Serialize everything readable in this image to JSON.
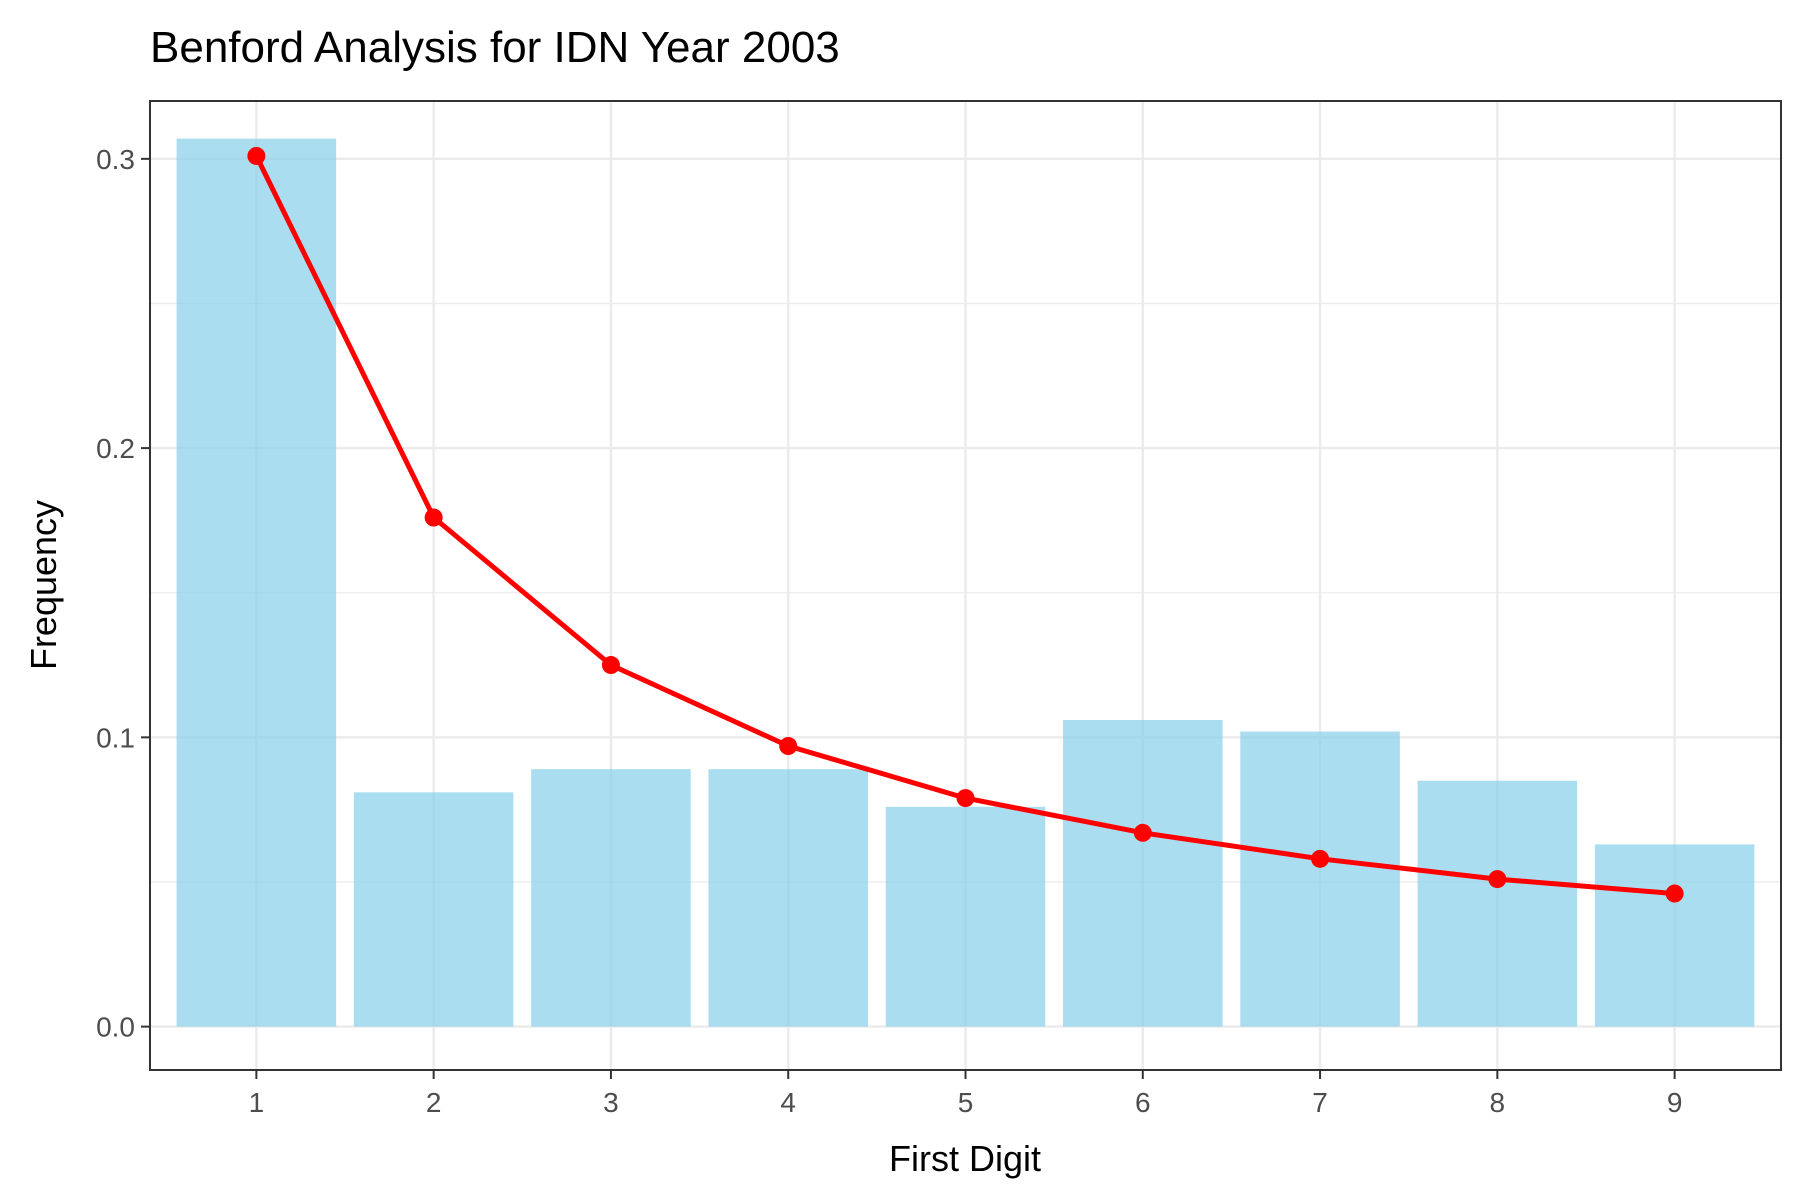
{
  "chart_data": {
    "type": "bar",
    "title": "Benford Analysis for IDN Year 2003",
    "xlabel": "First Digit",
    "ylabel": "Frequency",
    "categories": [
      "1",
      "2",
      "3",
      "4",
      "5",
      "6",
      "7",
      "8",
      "9"
    ],
    "xlim": [
      0.4,
      9.6
    ],
    "ylim": [
      -0.015,
      0.32
    ],
    "yticks": [
      0.0,
      0.1,
      0.2,
      0.3
    ],
    "ytick_labels": [
      "0.0",
      "0.1",
      "0.2",
      "0.3"
    ],
    "y_minor_gridlines": [
      0.05,
      0.15,
      0.25
    ],
    "grid": true,
    "legend": "none",
    "series": [
      {
        "type": "bar",
        "values": [
          0.307,
          0.081,
          0.089,
          0.089,
          0.076,
          0.106,
          0.102,
          0.085,
          0.063
        ],
        "color": "#87ceeb"
      },
      {
        "type": "line",
        "values": [
          0.301,
          0.176,
          0.125,
          0.097,
          0.079,
          0.067,
          0.058,
          0.051,
          0.046
        ],
        "color": "#ff0000"
      }
    ]
  }
}
